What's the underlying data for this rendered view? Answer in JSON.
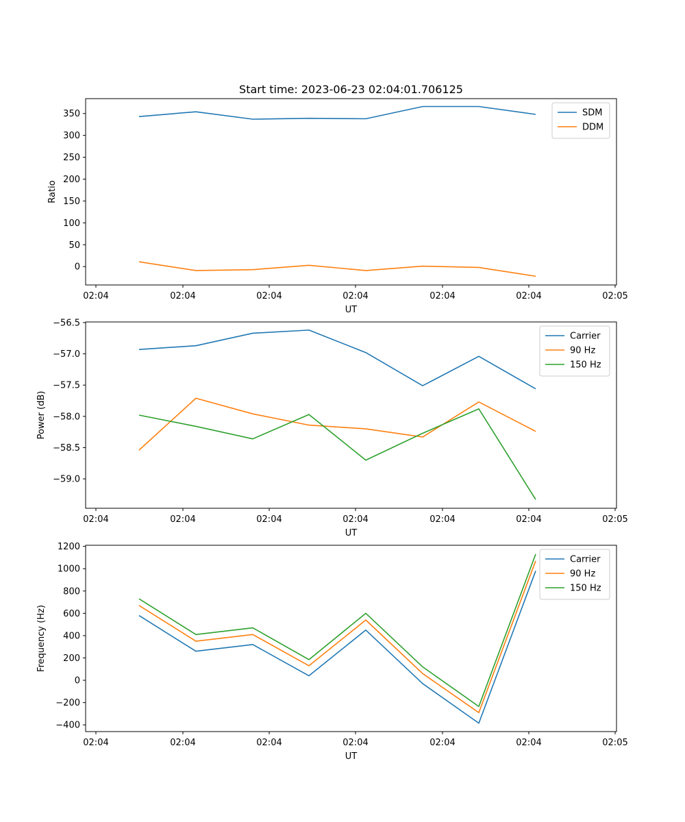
{
  "figure_title": "Start time: 2023-06-23 02:04:01.706125",
  "chart_data": [
    {
      "type": "line",
      "xlabel": "UT",
      "ylabel": "Ratio",
      "x_tick_labels": [
        "02:04",
        "02:04",
        "02:04",
        "02:04",
        "02:04",
        "02:04",
        "02:05"
      ],
      "y_ticks": [
        0,
        50,
        100,
        150,
        200,
        250,
        300,
        350
      ],
      "y_tick_labels": [
        "0",
        "50",
        "100",
        "150",
        "200",
        "250",
        "300",
        "350"
      ],
      "ylim": [
        -42,
        384
      ],
      "legend_position": "top-right",
      "series": [
        {
          "name": "SDM",
          "color": "#1f77b4",
          "values": [
            343,
            354,
            337,
            339,
            338,
            366,
            366,
            348
          ]
        },
        {
          "name": "DDM",
          "color": "#ff7f0e",
          "values": [
            11,
            -9,
            -7,
            3,
            -9,
            1,
            -2,
            -22
          ]
        }
      ]
    },
    {
      "type": "line",
      "xlabel": "UT",
      "ylabel": "Power (dB)",
      "x_tick_labels": [
        "02:04",
        "02:04",
        "02:04",
        "02:04",
        "02:04",
        "02:04",
        "02:05"
      ],
      "y_ticks": [
        -59.0,
        -58.5,
        -58.0,
        -57.5,
        -57.0,
        -56.5
      ],
      "y_tick_labels": [
        "−59.0",
        "−58.5",
        "−58.0",
        "−57.5",
        "−57.0",
        "−56.5"
      ],
      "ylim": [
        -59.47,
        -56.49
      ],
      "legend_position": "top-right",
      "series": [
        {
          "name": "Carrier",
          "color": "#1f77b4",
          "values": [
            -56.93,
            -56.87,
            -56.67,
            -56.62,
            -56.98,
            -57.51,
            -57.04,
            -57.56
          ]
        },
        {
          "name": "90 Hz",
          "color": "#ff7f0e",
          "values": [
            -58.54,
            -57.71,
            -57.96,
            -58.14,
            -58.2,
            -58.33,
            -57.77,
            -58.24
          ]
        },
        {
          "name": "150 Hz",
          "color": "#2ca02c",
          "values": [
            -57.98,
            -58.16,
            -58.36,
            -57.97,
            -58.7,
            -58.27,
            -57.88,
            -59.33
          ]
        }
      ]
    },
    {
      "type": "line",
      "xlabel": "UT",
      "ylabel": "Frequency (Hz)",
      "x_tick_labels": [
        "02:04",
        "02:04",
        "02:04",
        "02:04",
        "02:04",
        "02:04",
        "02:05"
      ],
      "y_ticks": [
        -400,
        -200,
        0,
        200,
        400,
        600,
        800,
        1000,
        1200
      ],
      "y_tick_labels": [
        "−400",
        "−200",
        "0",
        "200",
        "400",
        "600",
        "800",
        "1000",
        "1200"
      ],
      "ylim": [
        -460,
        1210
      ],
      "legend_position": "top-right",
      "series": [
        {
          "name": "Carrier",
          "color": "#1f77b4",
          "values": [
            580,
            260,
            320,
            40,
            450,
            -30,
            -385,
            980
          ]
        },
        {
          "name": "90 Hz",
          "color": "#ff7f0e",
          "values": [
            670,
            350,
            410,
            130,
            540,
            60,
            -290,
            1070
          ]
        },
        {
          "name": "150 Hz",
          "color": "#2ca02c",
          "values": [
            730,
            410,
            470,
            185,
            600,
            120,
            -235,
            1130
          ]
        }
      ]
    }
  ]
}
